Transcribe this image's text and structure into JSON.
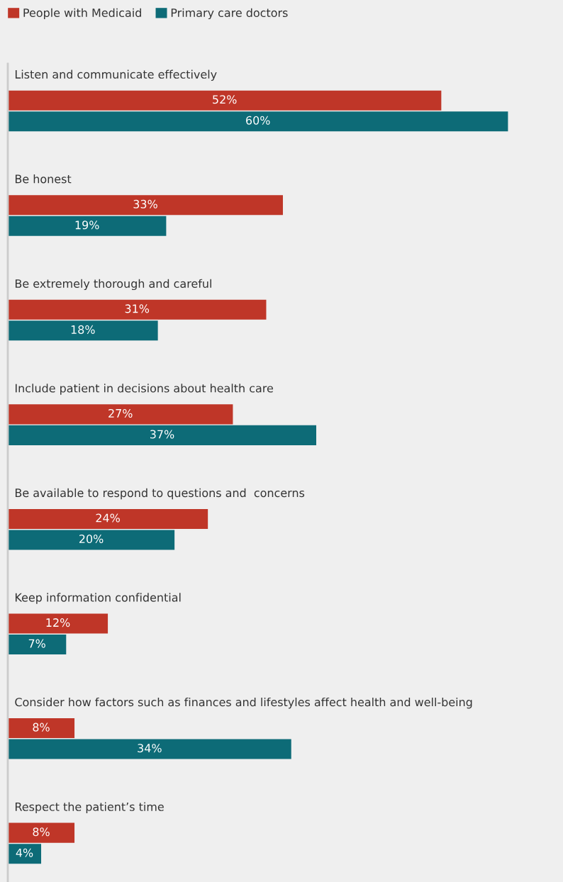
{
  "chart_data": {
    "type": "bar",
    "orientation": "horizontal",
    "categories": [
      "Listen and communicate effectively",
      "Be honest",
      "Be extremely thorough and careful",
      "Include patient in decisions about health care",
      "Be available to respond to questions and  concerns",
      "Keep information confidential",
      "Consider how factors such as finances and lifestyles affect health and well-being",
      "Respect the patient’s time"
    ],
    "series": [
      {
        "name": "People with Medicaid",
        "color": "#bf3628",
        "values": [
          52,
          33,
          31,
          27,
          24,
          12,
          8,
          8
        ],
        "value_labels": [
          "52%",
          "33%",
          "31%",
          "27%",
          "24%",
          "12%",
          "8%",
          "8%"
        ]
      },
      {
        "name": "Primary care doctors",
        "color": "#0d6b77",
        "values": [
          60,
          19,
          18,
          37,
          20,
          7,
          34,
          4
        ],
        "value_labels": [
          "60%",
          "19%",
          "18%",
          "37%",
          "20%",
          "7%",
          "34%",
          "4%"
        ]
      }
    ],
    "legend": "top left"
  }
}
